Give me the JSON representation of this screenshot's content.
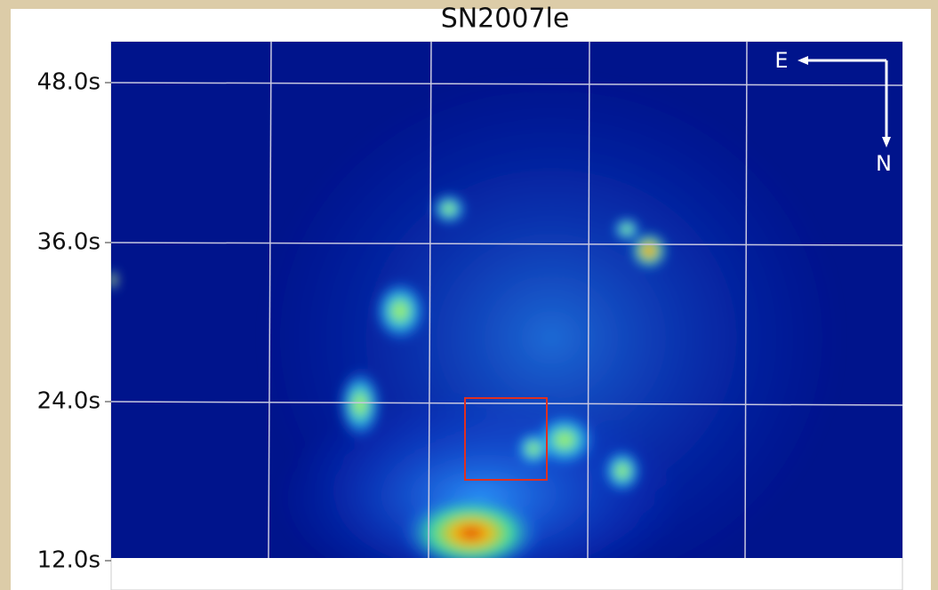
{
  "title": "SN2007le",
  "y_tick_labels": [
    "48.0s",
    "36.0s",
    "24.0s",
    "12.0s"
  ],
  "compass": {
    "east": "E",
    "north": "N"
  }
}
